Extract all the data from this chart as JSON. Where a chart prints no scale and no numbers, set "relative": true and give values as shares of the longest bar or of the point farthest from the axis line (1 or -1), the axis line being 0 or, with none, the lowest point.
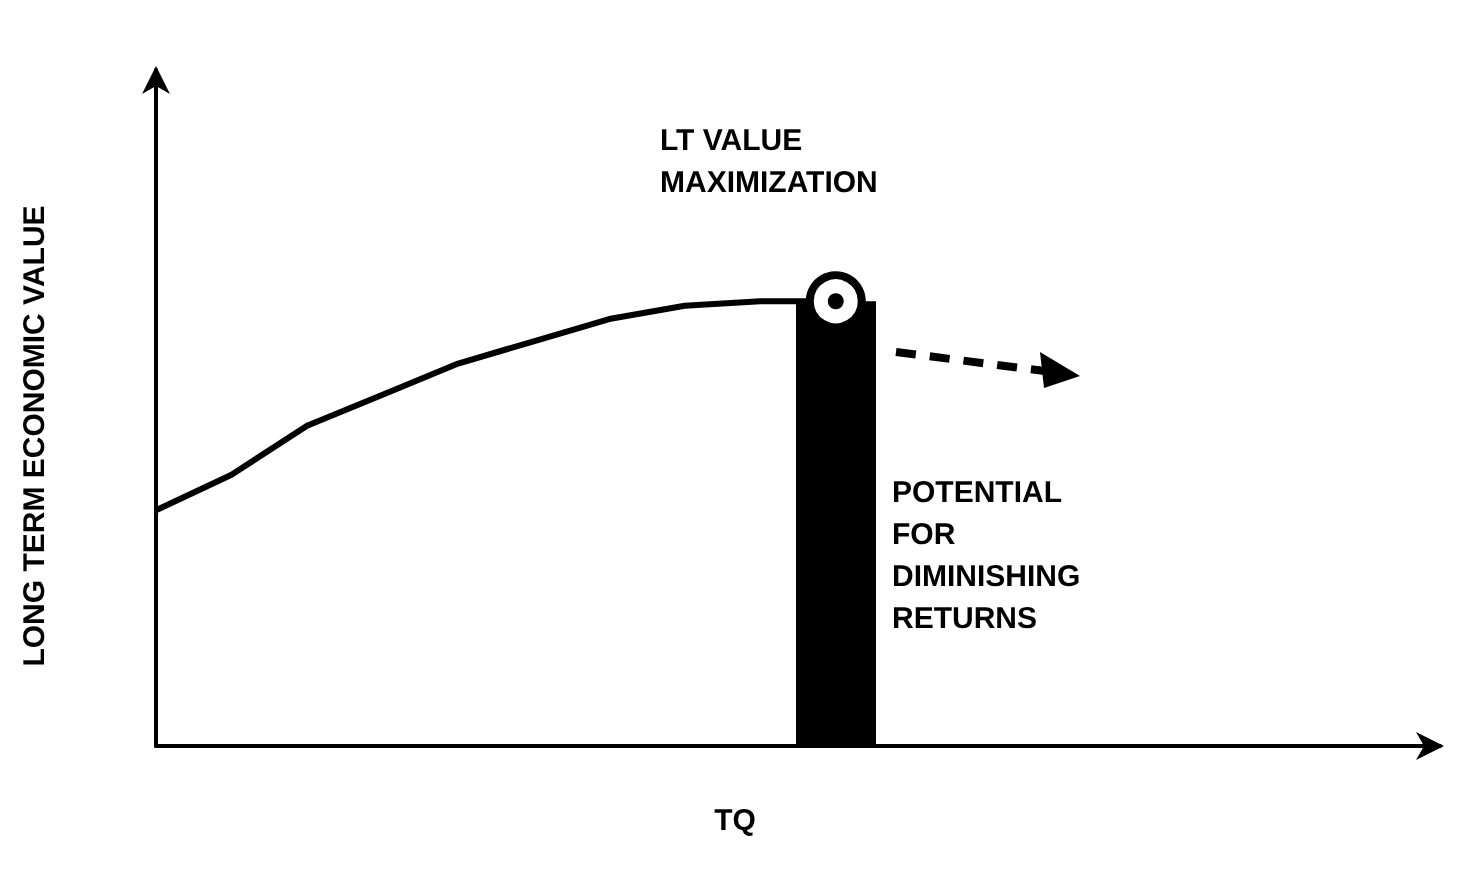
{
  "chart_data": {
    "type": "line",
    "relative": true,
    "xlabel": "TQ",
    "ylabel": "LONG TERM ECONOMIC VALUE",
    "categories": [
      null,
      null,
      null,
      null,
      null,
      null,
      null,
      null,
      null,
      null,
      null,
      null,
      null,
      null,
      null,
      null,
      null,
      null
    ],
    "series": [
      {
        "color": "#000000",
        "values": [
          0.53,
          0.61,
          0.72,
          0.79,
          0.86,
          0.91,
          0.96,
          0.99,
          1,
          1,
          null,
          null,
          null,
          null,
          null,
          null,
          null,
          null
        ]
      }
    ],
    "annotations": [
      "LT VALUE\nMAXIMIZATION",
      "POTENTIAL\nFOR\nDIMINISHING\nRETURNS"
    ],
    "grid": false,
    "marker": "none",
    "line_style": "solid"
  }
}
